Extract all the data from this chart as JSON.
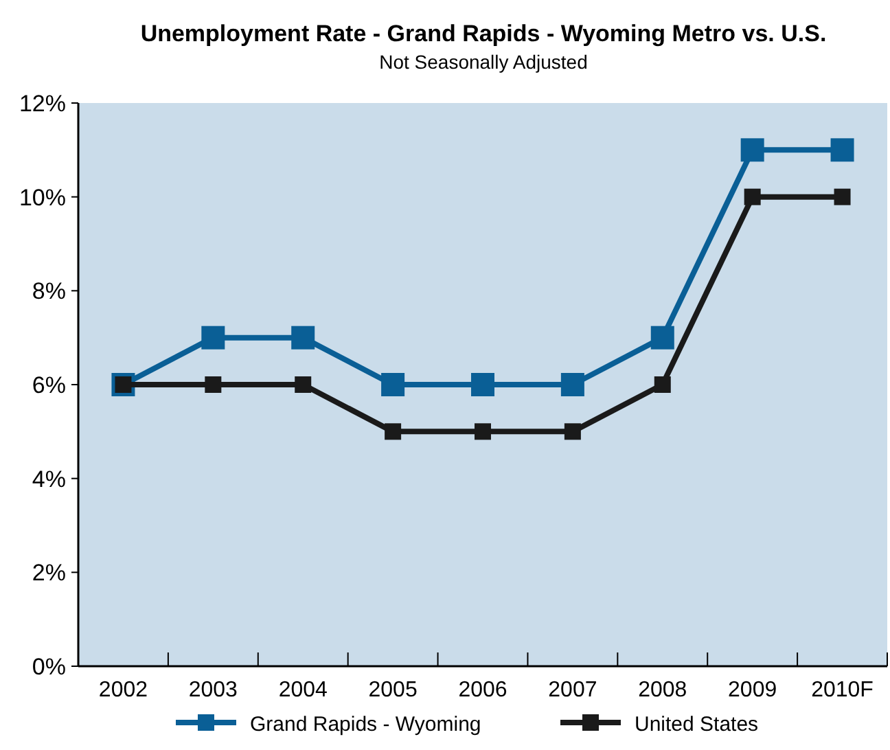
{
  "chart_data": {
    "type": "line",
    "title": "Unemployment Rate - Grand Rapids - Wyoming Metro vs. U.S.",
    "subtitle": "Not Seasonally Adjusted",
    "categories": [
      "2002",
      "2003",
      "2004",
      "2005",
      "2006",
      "2007",
      "2008",
      "2009",
      "2010F"
    ],
    "series": [
      {
        "name": "Grand Rapids - Wyoming",
        "color": "#0a5f96",
        "values": [
          6,
          7,
          7,
          6,
          6,
          6,
          7,
          11,
          11
        ]
      },
      {
        "name": "United States",
        "color": "#1a1a1a",
        "values": [
          6,
          6,
          6,
          5,
          5,
          5,
          6,
          10,
          10
        ]
      }
    ],
    "ylim": [
      0,
      12
    ],
    "yticks": [
      {
        "value": 0,
        "label": "0%"
      },
      {
        "value": 2,
        "label": "2%"
      },
      {
        "value": 4,
        "label": "4%"
      },
      {
        "value": 6,
        "label": "6%"
      },
      {
        "value": 8,
        "label": "8%"
      },
      {
        "value": 10,
        "label": "10%"
      },
      {
        "value": 12,
        "label": "12%"
      }
    ],
    "grid": false,
    "legend": "bottom",
    "marker": "square",
    "line_style": "solid"
  }
}
